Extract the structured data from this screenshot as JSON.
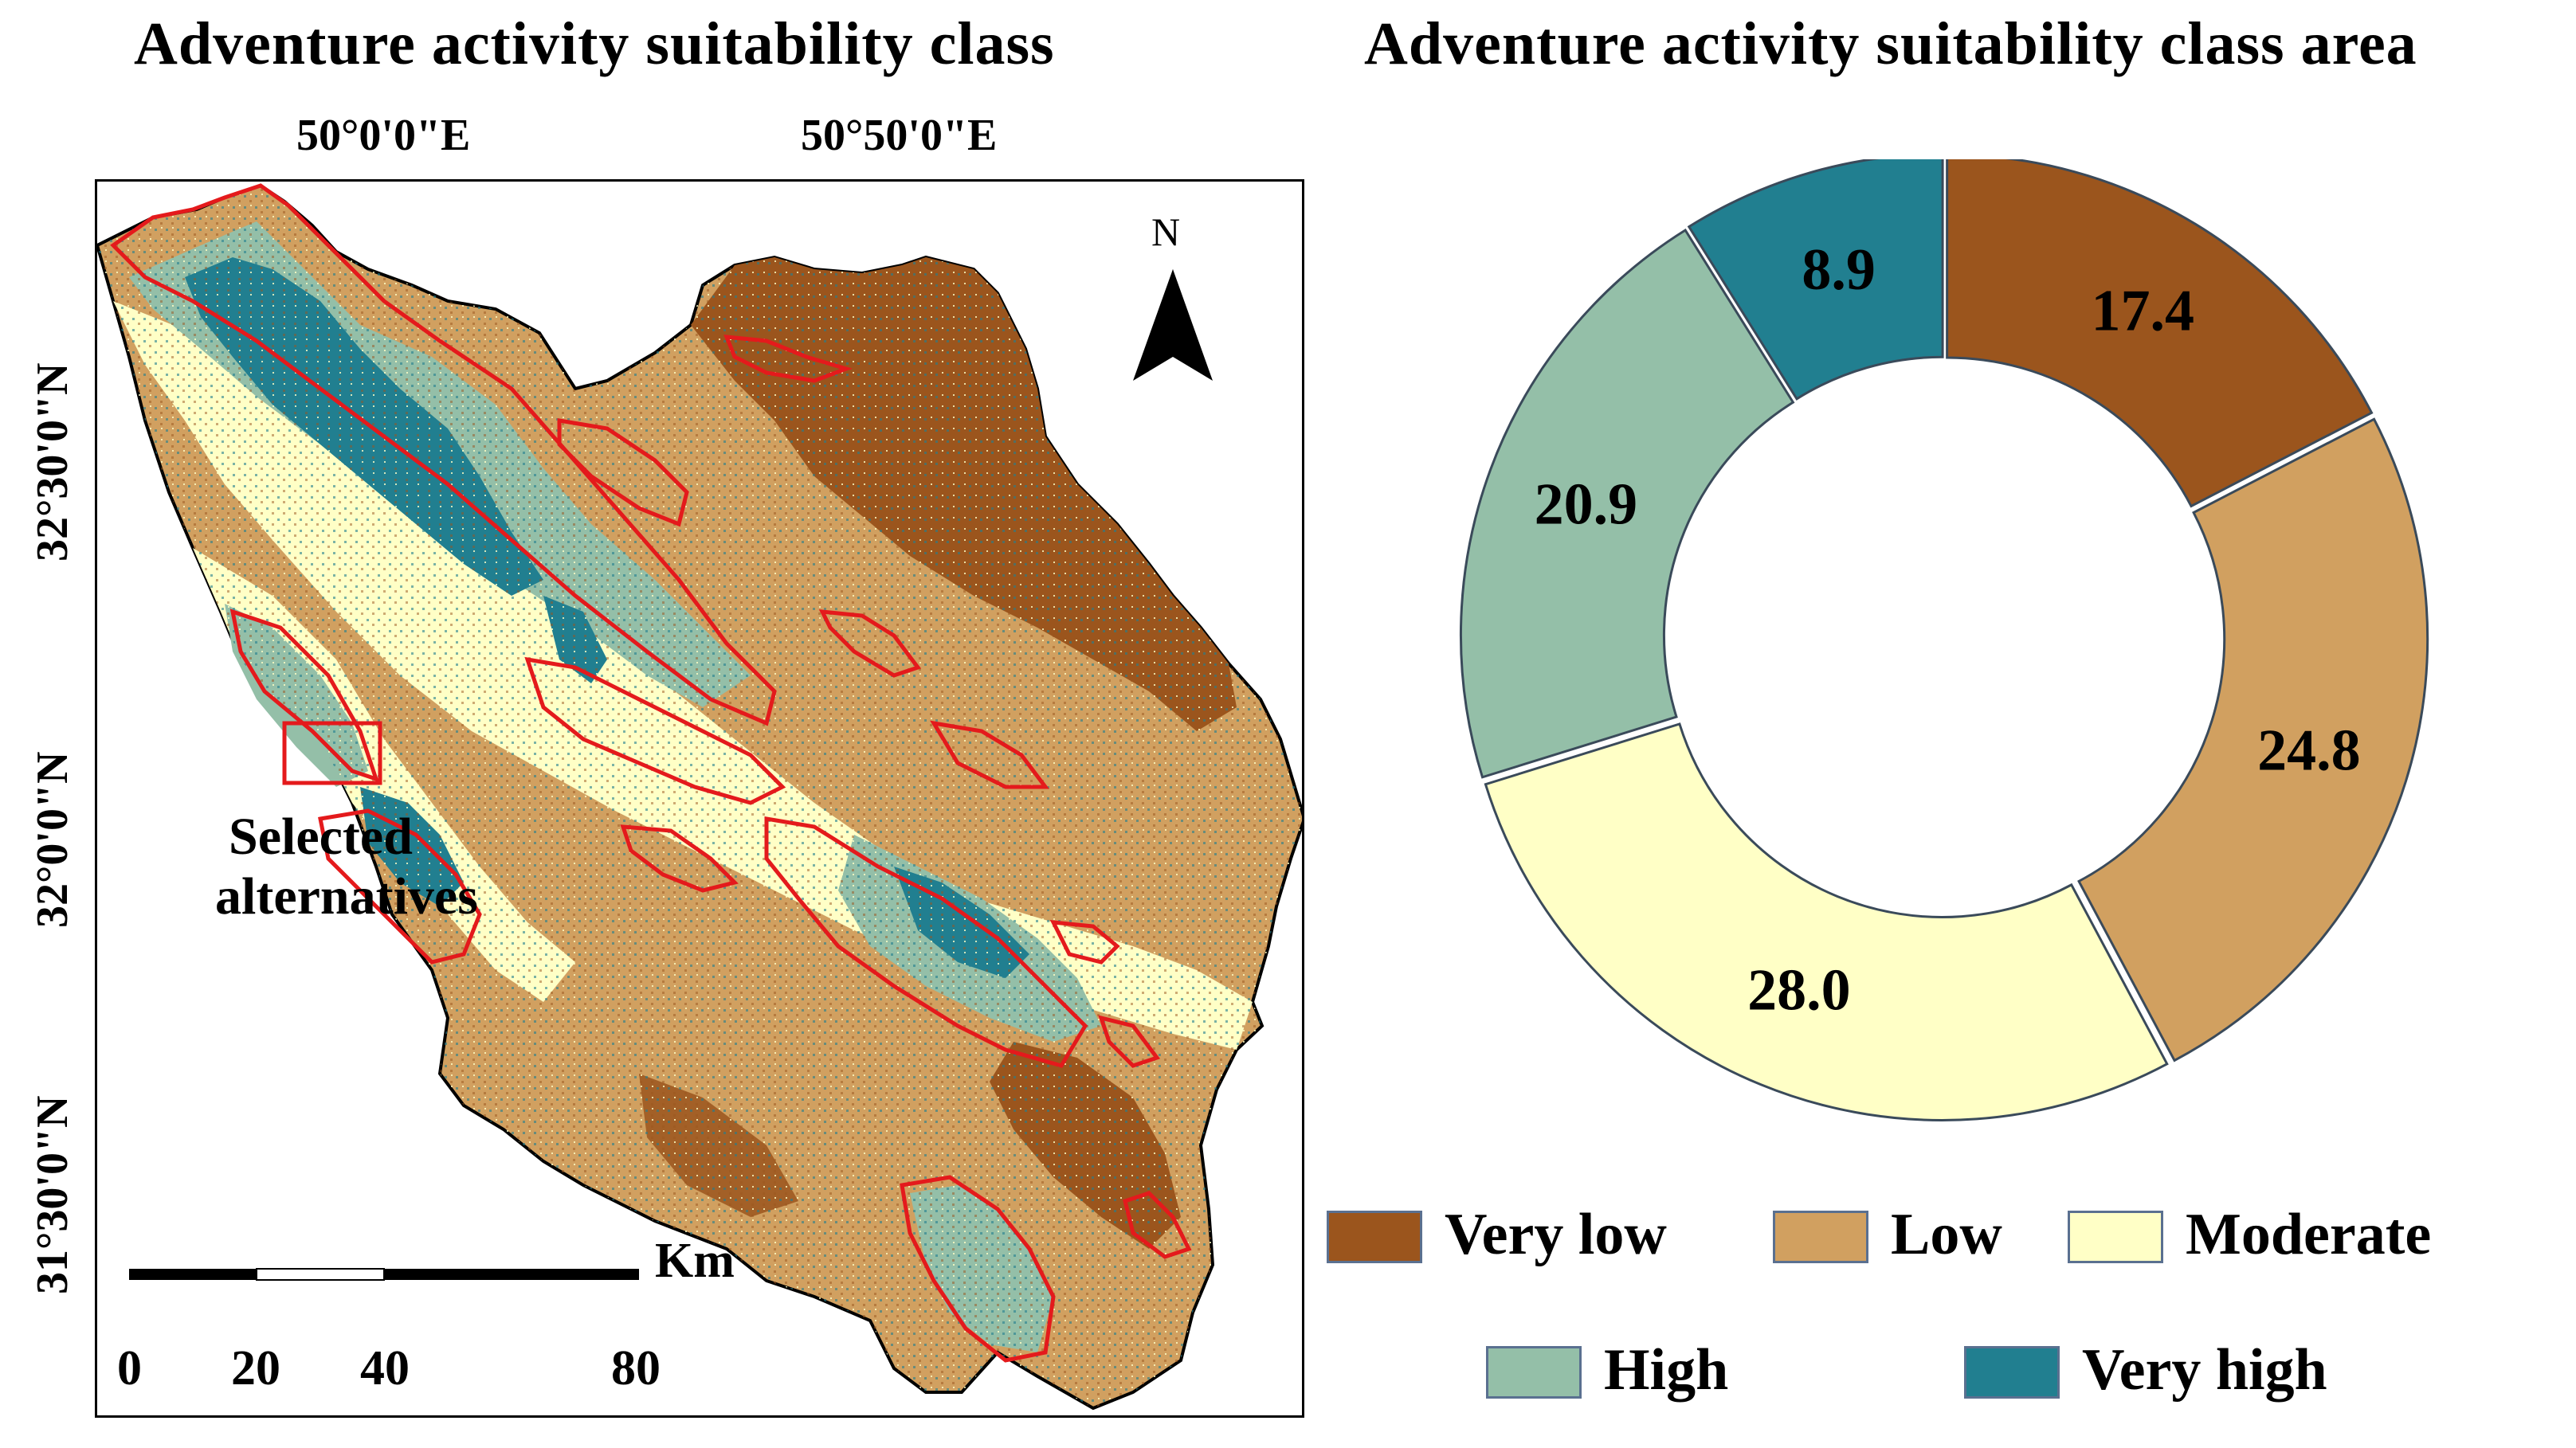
{
  "map": {
    "title": "Adventure activity suitability class",
    "lon_labels": [
      "50°0'0\"E",
      "50°50'0\"E"
    ],
    "lat_labels": [
      "32°30'0\"N",
      "32°0'0\"N",
      "31°30'0\"N"
    ],
    "north_label": "N",
    "legend_label_line1": "Selected",
    "legend_label_line2": "alternatives",
    "legend_outline_color": "#e41a1c",
    "scale_unit": "Km",
    "scale_ticks": [
      "0",
      "20",
      "40",
      "80"
    ]
  },
  "chart_data": {
    "type": "pie",
    "title": "Adventure activity suitability class area",
    "categories": [
      "Very low",
      "Low",
      "Moderate",
      "High",
      "Very high"
    ],
    "values": [
      17.4,
      24.8,
      28.0,
      20.9,
      8.9
    ],
    "labels": [
      "17.4",
      "24.8",
      "28.0",
      "20.9",
      "8.9"
    ],
    "colors": [
      "#9b551d",
      "#d1a060",
      "#ffffc6",
      "#94bfa8",
      "#217f90"
    ],
    "donut": true,
    "legend_position": "bottom"
  }
}
